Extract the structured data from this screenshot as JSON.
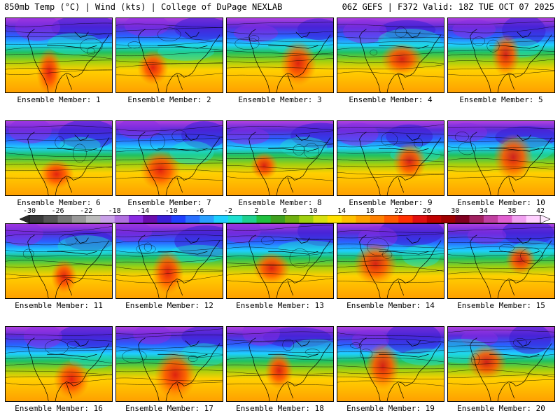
{
  "header": {
    "title_left": "850mb Temp (°C) | Wind (kts) | College of DuPage NEXLAB",
    "title_right": "06Z GEFS | F372 Valid: 18Z TUE OCT 07 2025"
  },
  "colorbar": {
    "tick_labels": [
      "-30",
      "-26",
      "-22",
      "-18",
      "-14",
      "-10",
      "-6",
      "-2",
      "2",
      "6",
      "10",
      "14",
      "18",
      "22",
      "26",
      "30",
      "34",
      "38",
      "42"
    ],
    "colors": [
      "#3a3a3a",
      "#555555",
      "#777777",
      "#999999",
      "#bbbbbb",
      "#c8a0e8",
      "#b070e0",
      "#8a2be2",
      "#6a0dad",
      "#3b1fd6",
      "#2040ff",
      "#2a70ff",
      "#2aa0ff",
      "#1fd0ff",
      "#1fe0d0",
      "#1fd090",
      "#20c040",
      "#40a020",
      "#70b010",
      "#a0d010",
      "#d8e010",
      "#ffe000",
      "#ffc000",
      "#ffa000",
      "#ff8000",
      "#ff5a00",
      "#ff3000",
      "#e01010",
      "#c00000",
      "#a00000",
      "#800020",
      "#a02060",
      "#c040a0",
      "#e060d0",
      "#f0a0f0",
      "#ffd0ff"
    ]
  },
  "panels": [
    {
      "label": "Ensemble Member: 1"
    },
    {
      "label": "Ensemble Member: 2"
    },
    {
      "label": "Ensemble Member: 3"
    },
    {
      "label": "Ensemble Member: 4"
    },
    {
      "label": "Ensemble Member: 5"
    },
    {
      "label": "Ensemble Member: 6"
    },
    {
      "label": "Ensemble Member: 7"
    },
    {
      "label": "Ensemble Member: 8"
    },
    {
      "label": "Ensemble Member: 9"
    },
    {
      "label": "Ensemble Member: 10"
    },
    {
      "label": "Ensemble Member: 11"
    },
    {
      "label": "Ensemble Member: 12"
    },
    {
      "label": "Ensemble Member: 13"
    },
    {
      "label": "Ensemble Member: 14"
    },
    {
      "label": "Ensemble Member: 15"
    },
    {
      "label": "Ensemble Member: 16"
    },
    {
      "label": "Ensemble Member: 17"
    },
    {
      "label": "Ensemble Member: 18"
    },
    {
      "label": "Ensemble Member: 19"
    },
    {
      "label": "Ensemble Member: 20"
    }
  ]
}
